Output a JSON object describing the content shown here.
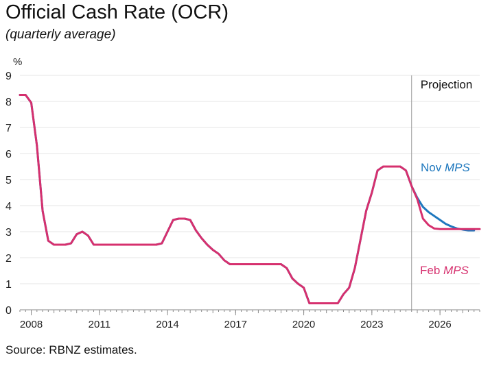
{
  "title": "Official Cash Rate (OCR)",
  "subtitle": "(quarterly average)",
  "source": "Source: RBNZ estimates.",
  "chart_data": {
    "type": "line",
    "title": "Official Cash Rate (OCR)",
    "subtitle": "(quarterly average)",
    "ylabel": "%",
    "xlabel": "",
    "ylim": [
      0,
      9
    ],
    "xlim": [
      2007.5,
      2027.75
    ],
    "yticks": [
      0,
      1,
      2,
      3,
      4,
      5,
      6,
      7,
      8,
      9
    ],
    "xticks": [
      2008,
      2011,
      2014,
      2017,
      2020,
      2023,
      2026
    ],
    "grid": true,
    "projection_start": 2024.75,
    "projection_label": "Projection",
    "colors": {
      "nov": "#1f78be",
      "feb": "#d6306e",
      "grid": "#e6e6e6",
      "axis": "#8a8a8a"
    },
    "series": [
      {
        "name": "Nov MPS",
        "label_plain": "Nov ",
        "label_italic": "MPS",
        "color": "#1f78be",
        "x": [
          2007.5,
          2007.75,
          2008.0,
          2008.25,
          2008.5,
          2008.75,
          2009.0,
          2009.25,
          2009.5,
          2009.75,
          2010.0,
          2010.25,
          2010.5,
          2010.75,
          2011.0,
          2011.25,
          2011.5,
          2011.75,
          2012.0,
          2012.25,
          2012.5,
          2012.75,
          2013.0,
          2013.25,
          2013.5,
          2013.75,
          2014.0,
          2014.25,
          2014.5,
          2014.75,
          2015.0,
          2015.25,
          2015.5,
          2015.75,
          2016.0,
          2016.25,
          2016.5,
          2016.75,
          2017.0,
          2017.25,
          2017.5,
          2017.75,
          2018.0,
          2018.25,
          2018.5,
          2018.75,
          2019.0,
          2019.25,
          2019.5,
          2019.75,
          2020.0,
          2020.25,
          2020.5,
          2020.75,
          2021.0,
          2021.25,
          2021.5,
          2021.75,
          2022.0,
          2022.25,
          2022.5,
          2022.75,
          2023.0,
          2023.25,
          2023.5,
          2023.75,
          2024.0,
          2024.25,
          2024.5,
          2024.75,
          2025.0,
          2025.25,
          2025.5,
          2025.75,
          2026.0,
          2026.25,
          2026.5,
          2026.75,
          2027.0,
          2027.25,
          2027.5
        ],
        "values": [
          8.25,
          8.25,
          7.95,
          6.3,
          3.8,
          2.65,
          2.5,
          2.5,
          2.5,
          2.55,
          2.9,
          3.0,
          2.85,
          2.5,
          2.5,
          2.5,
          2.5,
          2.5,
          2.5,
          2.5,
          2.5,
          2.5,
          2.5,
          2.5,
          2.5,
          2.55,
          3.0,
          3.45,
          3.5,
          3.5,
          3.45,
          3.05,
          2.75,
          2.5,
          2.3,
          2.15,
          1.9,
          1.75,
          1.75,
          1.75,
          1.75,
          1.75,
          1.75,
          1.75,
          1.75,
          1.75,
          1.75,
          1.6,
          1.2,
          1.0,
          0.85,
          0.25,
          0.25,
          0.25,
          0.25,
          0.25,
          0.25,
          0.6,
          0.85,
          1.6,
          2.7,
          3.8,
          4.5,
          5.35,
          5.5,
          5.5,
          5.5,
          5.5,
          5.35,
          4.75,
          4.3,
          3.95,
          3.75,
          3.6,
          3.45,
          3.3,
          3.2,
          3.12,
          3.08,
          3.05,
          3.05
        ]
      },
      {
        "name": "Feb MPS",
        "label_plain": "Feb ",
        "label_italic": "MPS",
        "color": "#d6306e",
        "x": [
          2007.5,
          2007.75,
          2008.0,
          2008.25,
          2008.5,
          2008.75,
          2009.0,
          2009.25,
          2009.5,
          2009.75,
          2010.0,
          2010.25,
          2010.5,
          2010.75,
          2011.0,
          2011.25,
          2011.5,
          2011.75,
          2012.0,
          2012.25,
          2012.5,
          2012.75,
          2013.0,
          2013.25,
          2013.5,
          2013.75,
          2014.0,
          2014.25,
          2014.5,
          2014.75,
          2015.0,
          2015.25,
          2015.5,
          2015.75,
          2016.0,
          2016.25,
          2016.5,
          2016.75,
          2017.0,
          2017.25,
          2017.5,
          2017.75,
          2018.0,
          2018.25,
          2018.5,
          2018.75,
          2019.0,
          2019.25,
          2019.5,
          2019.75,
          2020.0,
          2020.25,
          2020.5,
          2020.75,
          2021.0,
          2021.25,
          2021.5,
          2021.75,
          2022.0,
          2022.25,
          2022.5,
          2022.75,
          2023.0,
          2023.25,
          2023.5,
          2023.75,
          2024.0,
          2024.25,
          2024.5,
          2024.75,
          2025.0,
          2025.25,
          2025.5,
          2025.75,
          2026.0,
          2026.25,
          2026.5,
          2026.75,
          2027.0,
          2027.25,
          2027.5,
          2027.75
        ],
        "values": [
          8.25,
          8.25,
          7.95,
          6.3,
          3.8,
          2.65,
          2.5,
          2.5,
          2.5,
          2.55,
          2.9,
          3.0,
          2.85,
          2.5,
          2.5,
          2.5,
          2.5,
          2.5,
          2.5,
          2.5,
          2.5,
          2.5,
          2.5,
          2.5,
          2.5,
          2.55,
          3.0,
          3.45,
          3.5,
          3.5,
          3.45,
          3.05,
          2.75,
          2.5,
          2.3,
          2.15,
          1.9,
          1.75,
          1.75,
          1.75,
          1.75,
          1.75,
          1.75,
          1.75,
          1.75,
          1.75,
          1.75,
          1.6,
          1.2,
          1.0,
          0.85,
          0.25,
          0.25,
          0.25,
          0.25,
          0.25,
          0.25,
          0.6,
          0.85,
          1.6,
          2.7,
          3.8,
          4.5,
          5.35,
          5.5,
          5.5,
          5.5,
          5.5,
          5.35,
          4.75,
          4.25,
          3.5,
          3.25,
          3.12,
          3.1,
          3.1,
          3.1,
          3.1,
          3.1,
          3.1,
          3.1,
          3.1
        ]
      }
    ]
  }
}
